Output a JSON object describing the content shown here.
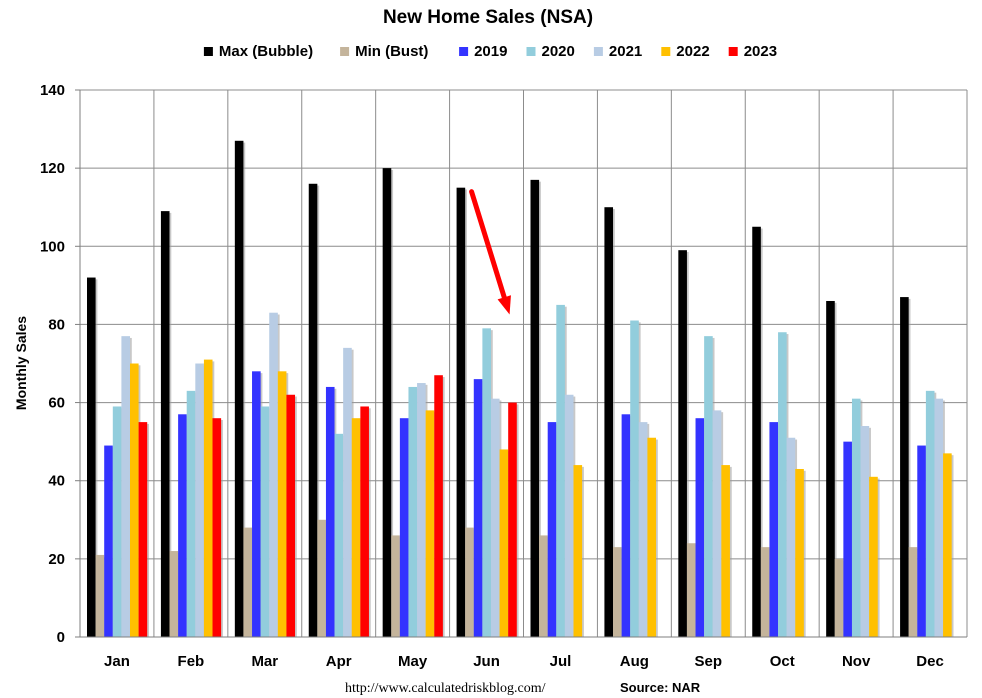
{
  "chart_data": {
    "type": "bar",
    "title": "New Home Sales (NSA)",
    "xlabel": "",
    "ylabel": "Monthly Sales",
    "ylim": [
      0,
      140
    ],
    "yticks": [
      0,
      20,
      40,
      60,
      80,
      100,
      120,
      140
    ],
    "grid": true,
    "legend_position": "top",
    "categories": [
      "Jan",
      "Feb",
      "Mar",
      "Apr",
      "May",
      "Jun",
      "Jul",
      "Aug",
      "Sep",
      "Oct",
      "Nov",
      "Dec"
    ],
    "series": [
      {
        "name": "Max (Bubble)",
        "color": "#000000",
        "values": [
          92,
          109,
          127,
          116,
          120,
          115,
          117,
          110,
          99,
          105,
          86,
          87
        ]
      },
      {
        "name": "Min (Bust)",
        "color": "#C4B49B",
        "values": [
          21,
          22,
          28,
          30,
          26,
          28,
          26,
          23,
          24,
          23,
          20,
          23
        ]
      },
      {
        "name": "2019",
        "color": "#3333FF",
        "values": [
          49,
          57,
          68,
          64,
          56,
          66,
          55,
          57,
          56,
          55,
          50,
          49
        ]
      },
      {
        "name": "2020",
        "color": "#92CDDC",
        "values": [
          59,
          63,
          59,
          52,
          64,
          79,
          85,
          81,
          77,
          78,
          61,
          63
        ]
      },
      {
        "name": "2021",
        "color": "#B8CCE4",
        "values": [
          77,
          70,
          83,
          74,
          65,
          61,
          62,
          55,
          58,
          51,
          54,
          61
        ]
      },
      {
        "name": "2022",
        "color": "#FFC000",
        "values": [
          70,
          71,
          68,
          56,
          58,
          48,
          44,
          51,
          44,
          43,
          41,
          47
        ]
      },
      {
        "name": "2023",
        "color": "#FF0000",
        "values": [
          55,
          56,
          62,
          59,
          67,
          60,
          null,
          null,
          null,
          null,
          null,
          null
        ]
      }
    ],
    "annotations": [
      {
        "type": "arrow",
        "color": "#FF0000",
        "from": {
          "category": "Jun",
          "y": 115
        },
        "to": {
          "category": "Jun",
          "y": 81
        }
      }
    ]
  },
  "footer": {
    "url": "http://www.calculatedriskblog.com/",
    "source": "Source: NAR"
  }
}
